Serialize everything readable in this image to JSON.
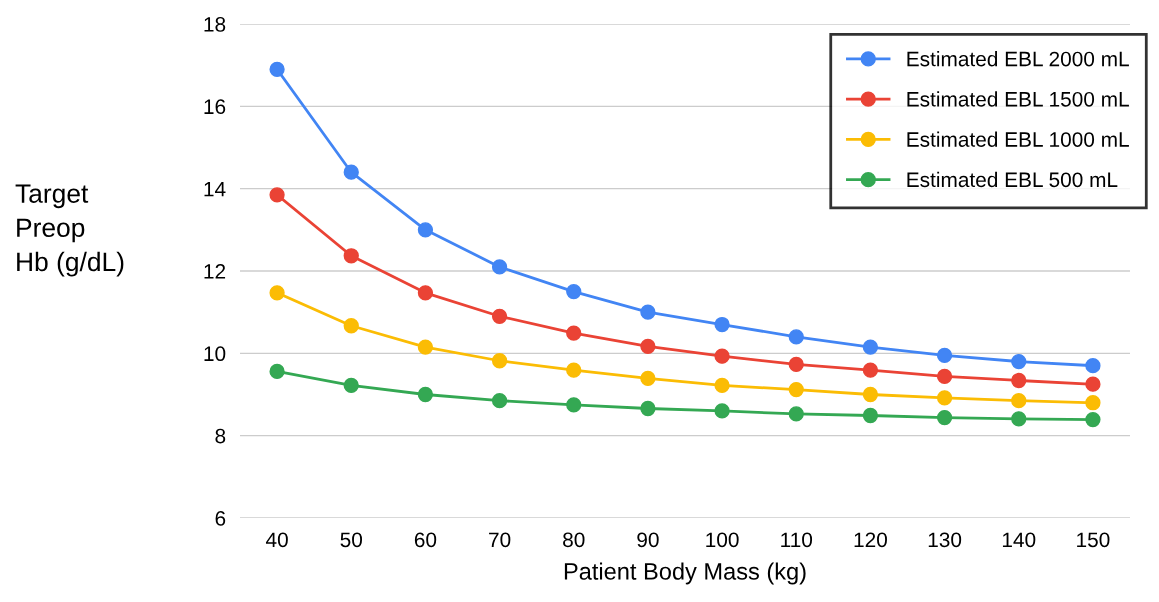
{
  "chart_data": {
    "type": "line",
    "xlabel": "Patient Body Mass (kg)",
    "ylabel": "Target\nPreop\nHb (g/dL)",
    "categories": [
      "40",
      "50",
      "60",
      "70",
      "80",
      "90",
      "100",
      "110",
      "120",
      "130",
      "140",
      "150"
    ],
    "ylim": [
      6,
      18
    ],
    "yticks": [
      6,
      8,
      10,
      12,
      14,
      16,
      18
    ],
    "grid": "y",
    "legend": "top right",
    "marker": "circle",
    "line_style": "solid",
    "series": [
      {
        "name": "Estimated EBL 2000 mL",
        "color": "#4285f4",
        "values": [
          16.9,
          14.4,
          13.0,
          12.1,
          11.5,
          11.0,
          10.7,
          10.4,
          10.15,
          9.95,
          9.8,
          9.7
        ]
      },
      {
        "name": "Estimated EBL 1500 mL",
        "color": "#ea4335",
        "values": [
          13.85,
          12.37,
          11.47,
          10.9,
          10.49,
          10.17,
          9.93,
          9.73,
          9.59,
          9.44,
          9.34,
          9.25
        ]
      },
      {
        "name": "Estimated EBL 1000 mL",
        "color": "#fbbc04",
        "values": [
          11.47,
          10.67,
          10.15,
          9.82,
          9.59,
          9.39,
          9.22,
          9.12,
          9.0,
          8.92,
          8.85,
          8.8
        ]
      },
      {
        "name": "Estimated EBL 500 mL",
        "color": "#34a853",
        "values": [
          9.56,
          9.22,
          9.0,
          8.85,
          8.75,
          8.66,
          8.6,
          8.53,
          8.49,
          8.44,
          8.41,
          8.39
        ]
      }
    ]
  }
}
